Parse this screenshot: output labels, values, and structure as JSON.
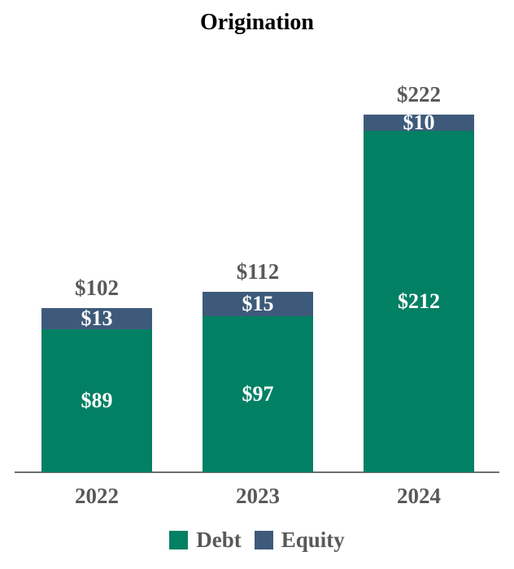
{
  "chart_data": {
    "type": "bar",
    "stacked": true,
    "title": "Origination",
    "categories": [
      "2022",
      "2023",
      "2024"
    ],
    "series": [
      {
        "name": "Debt",
        "color": "#028064",
        "values": [
          89,
          97,
          212
        ],
        "labels": [
          "$89",
          "$97",
          "$212"
        ]
      },
      {
        "name": "Equity",
        "color": "#3E5A7A",
        "values": [
          13,
          15,
          10
        ],
        "labels": [
          "$13",
          "$15",
          "$10"
        ]
      }
    ],
    "totals": [
      102,
      112,
      222
    ],
    "total_labels": [
      "$102",
      "$112",
      "$222"
    ],
    "ylim": [
      0,
      222
    ],
    "grid": false,
    "legend_position": "bottom",
    "colors": {
      "title": "#000000",
      "category_and_total_labels": "#595959",
      "in_bar_labels": "#FFFFFF",
      "axis_line": "#6E6E6E"
    }
  }
}
